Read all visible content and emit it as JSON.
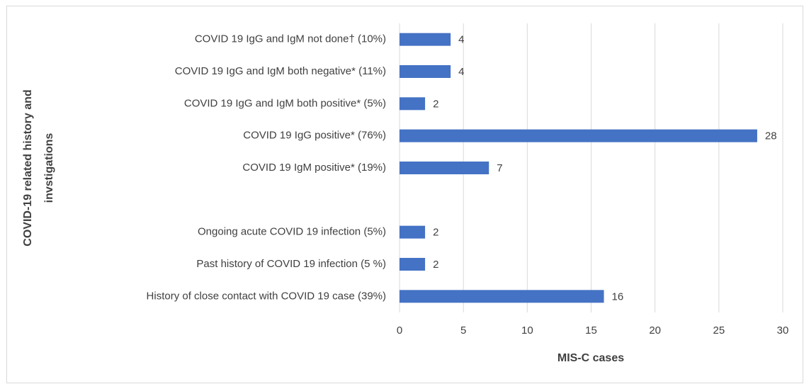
{
  "chart_data": {
    "type": "hbar",
    "categories": [
      "COVID 19 IgG and IgM not done† (10%)",
      "COVID 19 IgG and IgM both negative* (11%)",
      "COVID 19 IgG and IgM both positive* (5%)",
      "COVID 19 IgG positive* (76%)",
      "COVID 19 IgM positive* (19%)",
      null,
      "Ongoing acute COVID 19 infection (5%)",
      "Past history of COVID 19 infection (5 %)",
      "History of close contact with COVID 19 case (39%)"
    ],
    "values": [
      4,
      4,
      2,
      28,
      7,
      null,
      2,
      2,
      16
    ],
    "color": "#4472c4",
    "xlabel": "MIS-C cases",
    "ylabel": [
      "COVID-19 related history and",
      "invstigations"
    ],
    "xlim": [
      0,
      30
    ],
    "xticks": [
      0,
      5,
      10,
      15,
      20,
      25,
      30
    ],
    "grid": true
  }
}
